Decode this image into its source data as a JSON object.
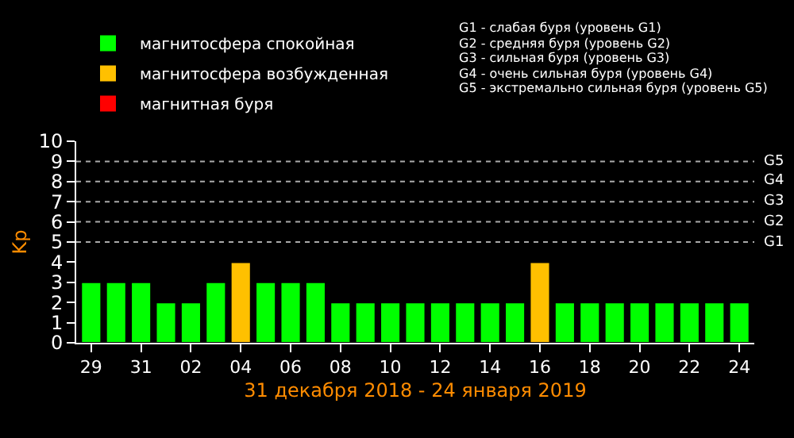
{
  "chart_data": {
    "type": "bar",
    "xlabel": "31 декабря 2018 - 24 января 2019",
    "ylabel": "Kp",
    "categories": [
      "29",
      null,
      "31",
      null,
      "02",
      null,
      "04",
      null,
      "06",
      null,
      "08",
      null,
      "10",
      null,
      "12",
      null,
      "14",
      null,
      "16",
      null,
      "18",
      null,
      "20",
      null,
      "22",
      null,
      "24"
    ],
    "series": [
      {
        "name": "магнитосфера спокойная",
        "color": "#00ff00",
        "values": [
          3,
          3,
          3,
          2,
          2,
          3,
          null,
          3,
          3,
          3,
          2,
          2,
          2,
          2,
          2,
          2,
          2,
          2,
          null,
          2,
          2,
          2,
          2,
          2,
          2,
          2,
          2
        ]
      },
      {
        "name": "магнитосфера возбужденная",
        "color": "#ffc000",
        "values": [
          null,
          null,
          null,
          null,
          null,
          null,
          4,
          null,
          null,
          null,
          null,
          null,
          null,
          null,
          null,
          null,
          null,
          null,
          4,
          null,
          null,
          null,
          null,
          null,
          null,
          null,
          null
        ]
      },
      {
        "name": "магнитная буря",
        "color": "#ff0000",
        "values": [
          null,
          null,
          null,
          null,
          null,
          null,
          null,
          null,
          null,
          null,
          null,
          null,
          null,
          null,
          null,
          null,
          null,
          null,
          null,
          null,
          null,
          null,
          null,
          null,
          null,
          null,
          null
        ]
      }
    ],
    "ylim": [
      0,
      10
    ],
    "yticks": [
      0,
      1,
      2,
      3,
      4,
      5,
      6,
      7,
      8,
      9,
      10
    ],
    "ref_lines": [
      {
        "axis": "y",
        "value": 5,
        "label": "G1",
        "line_style": "dotted",
        "color": "#aaaaaa"
      },
      {
        "axis": "y",
        "value": 6,
        "label": "G2",
        "line_style": "dotted",
        "color": "#aaaaaa"
      },
      {
        "axis": "y",
        "value": 7,
        "label": "G3",
        "line_style": "dotted",
        "color": "#aaaaaa"
      },
      {
        "axis": "y",
        "value": 8,
        "label": "G4",
        "line_style": "dotted",
        "color": "#aaaaaa"
      },
      {
        "axis": "y",
        "value": 9,
        "label": "G5",
        "line_style": "dotted",
        "color": "#aaaaaa"
      }
    ],
    "annotations": [
      "G1 - слабая буря (уровень G1)",
      "G2 - средняя буря (уровень G2)",
      "G3 - сильная буря (уровень G3)",
      "G4 - очень сильная буря (уровень G4)",
      "G5 - экстремально сильная буря (уровень G5)"
    ],
    "legend": "top left",
    "grid": false
  }
}
